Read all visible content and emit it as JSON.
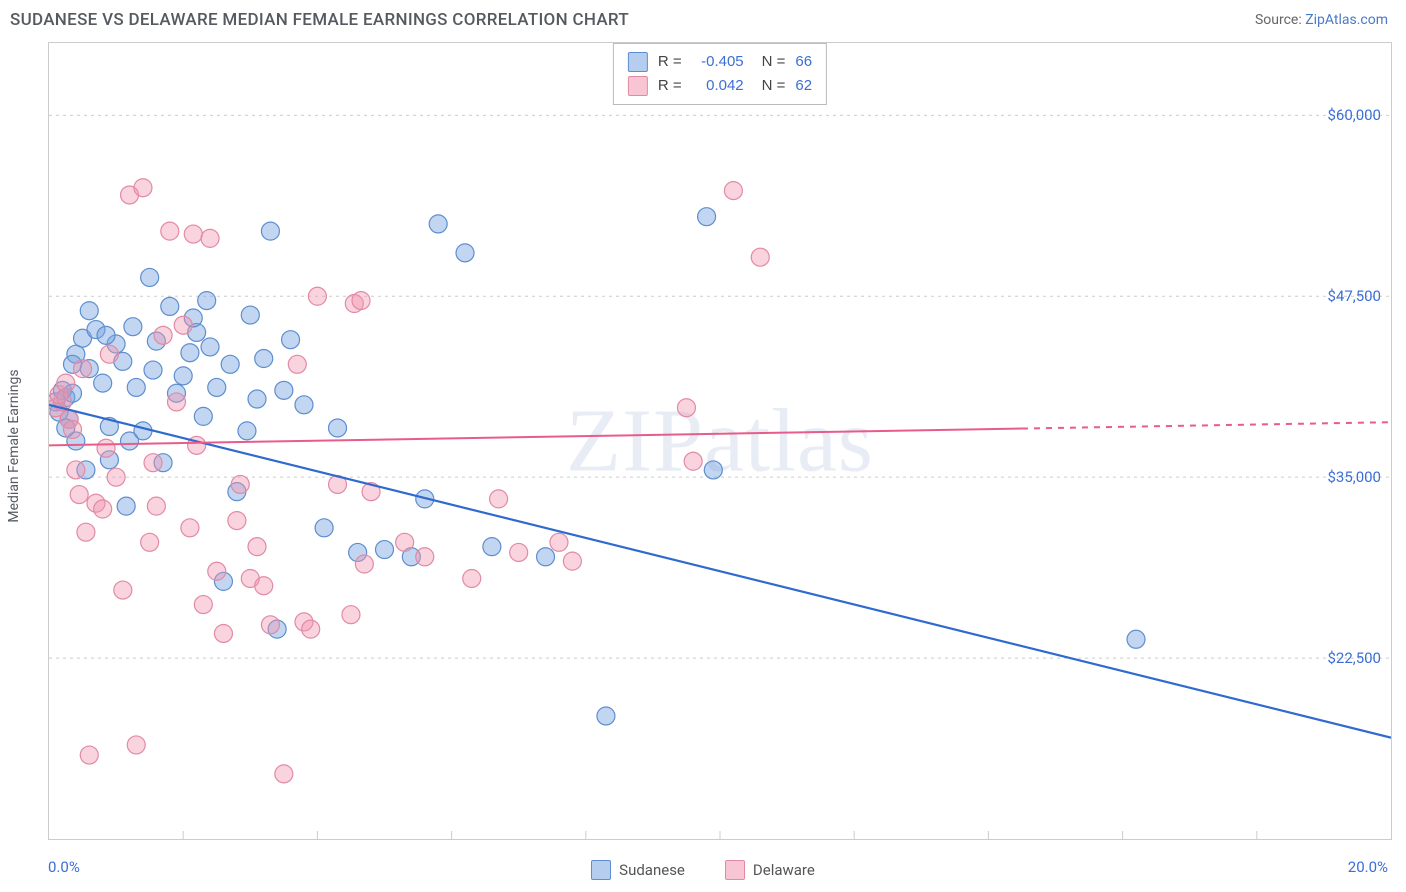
{
  "header": {
    "title": "SUDANESE VS DELAWARE MEDIAN FEMALE EARNINGS CORRELATION CHART",
    "source_prefix": "Source: ",
    "source_link": "ZipAtlas.com"
  },
  "axes": {
    "ylabel": "Median Female Earnings",
    "ylabel_fontsize": 14,
    "xmin": 0.0,
    "xmax": 20.0,
    "xmin_label": "0.0%",
    "xmax_label": "20.0%",
    "ymin": 10000,
    "ymax": 65000,
    "y_ticks": [
      22500,
      35000,
      47500,
      60000
    ],
    "y_tick_labels": [
      "$22,500",
      "$35,000",
      "$47,500",
      "$60,000"
    ],
    "x_tick_positions": [
      2.0,
      4.0,
      6.0,
      8.0,
      10.0,
      12.0,
      14.0,
      16.0,
      18.0
    ]
  },
  "watermark": "ZIPatlas",
  "series": [
    {
      "name": "Sudanese",
      "fill": "rgba(120,165,225,0.45)",
      "stroke": "#5e8ecf",
      "line_stroke": "#2f6ad0",
      "line_width": 2.2,
      "marker_radius": 9,
      "trend": {
        "x1": 0.0,
        "y1": 40000,
        "x2": 20.0,
        "y2": 17000,
        "solid_until_x": 20.0
      },
      "points": [
        [
          0.1,
          40200
        ],
        [
          0.2,
          41000
        ],
        [
          0.3,
          39000
        ],
        [
          0.15,
          39500
        ],
        [
          0.25,
          40500
        ],
        [
          0.35,
          40800
        ],
        [
          0.4,
          43500
        ],
        [
          0.5,
          44600
        ],
        [
          0.6,
          42500
        ],
        [
          0.7,
          45200
        ],
        [
          0.8,
          41500
        ],
        [
          0.9,
          38500
        ],
        [
          1.0,
          44200
        ],
        [
          1.1,
          43000
        ],
        [
          1.2,
          37500
        ],
        [
          1.3,
          41200
        ],
        [
          1.5,
          48800
        ],
        [
          1.6,
          44400
        ],
        [
          1.7,
          36000
        ],
        [
          1.8,
          46800
        ],
        [
          1.9,
          40800
        ],
        [
          2.0,
          42000
        ],
        [
          2.1,
          43600
        ],
        [
          2.2,
          45000
        ],
        [
          2.3,
          39200
        ],
        [
          2.4,
          44000
        ],
        [
          2.5,
          41200
        ],
        [
          2.7,
          42800
        ],
        [
          2.8,
          34000
        ],
        [
          3.0,
          46200
        ],
        [
          3.1,
          40400
        ],
        [
          3.2,
          43200
        ],
        [
          3.3,
          52000
        ],
        [
          3.5,
          41000
        ],
        [
          3.6,
          44500
        ],
        [
          3.8,
          40000
        ],
        [
          3.4,
          24500
        ],
        [
          2.6,
          27800
        ],
        [
          4.1,
          31500
        ],
        [
          4.3,
          38400
        ],
        [
          4.6,
          29800
        ],
        [
          5.0,
          30000
        ],
        [
          5.4,
          29500
        ],
        [
          5.6,
          33500
        ],
        [
          5.8,
          52500
        ],
        [
          6.2,
          50500
        ],
        [
          6.6,
          30200
        ],
        [
          7.4,
          29500
        ],
        [
          8.3,
          18500
        ],
        [
          9.8,
          53000
        ],
        [
          9.9,
          35500
        ],
        [
          16.2,
          23800
        ],
        [
          0.6,
          46500
        ],
        [
          0.4,
          37500
        ],
        [
          0.9,
          36200
        ],
        [
          1.4,
          38200
        ],
        [
          1.15,
          33000
        ],
        [
          0.85,
          44800
        ],
        [
          2.35,
          47200
        ],
        [
          0.55,
          35500
        ],
        [
          1.25,
          45400
        ],
        [
          2.95,
          38200
        ],
        [
          1.55,
          42400
        ],
        [
          0.35,
          42800
        ],
        [
          2.15,
          46000
        ],
        [
          0.25,
          38400
        ]
      ]
    },
    {
      "name": "Delaware",
      "fill": "rgba(240,150,175,0.42)",
      "stroke": "#e28aa5",
      "line_stroke": "#e75c8a",
      "line_width": 2.0,
      "marker_radius": 9,
      "trend": {
        "x1": 0.0,
        "y1": 37200,
        "x2": 20.0,
        "y2": 38800,
        "solid_until_x": 14.5
      },
      "points": [
        [
          0.1,
          39800
        ],
        [
          0.2,
          40200
        ],
        [
          0.3,
          39000
        ],
        [
          0.15,
          40700
        ],
        [
          0.25,
          41500
        ],
        [
          0.35,
          38300
        ],
        [
          0.4,
          35500
        ],
        [
          0.5,
          42500
        ],
        [
          0.6,
          15800
        ],
        [
          0.7,
          33200
        ],
        [
          0.8,
          32800
        ],
        [
          0.9,
          43500
        ],
        [
          1.0,
          35000
        ],
        [
          1.1,
          27200
        ],
        [
          1.2,
          54500
        ],
        [
          1.3,
          16500
        ],
        [
          1.4,
          55000
        ],
        [
          1.5,
          30500
        ],
        [
          1.6,
          33000
        ],
        [
          1.7,
          44800
        ],
        [
          1.8,
          52000
        ],
        [
          1.9,
          40200
        ],
        [
          2.0,
          45500
        ],
        [
          2.1,
          31500
        ],
        [
          2.15,
          51800
        ],
        [
          2.2,
          37200
        ],
        [
          2.3,
          26200
        ],
        [
          2.4,
          51500
        ],
        [
          2.5,
          28500
        ],
        [
          2.6,
          24200
        ],
        [
          2.8,
          32000
        ],
        [
          2.85,
          34500
        ],
        [
          3.0,
          28000
        ],
        [
          3.1,
          30200
        ],
        [
          3.2,
          27500
        ],
        [
          3.3,
          24800
        ],
        [
          3.5,
          14500
        ],
        [
          3.7,
          42800
        ],
        [
          3.8,
          25000
        ],
        [
          3.9,
          24500
        ],
        [
          4.0,
          47500
        ],
        [
          4.3,
          34500
        ],
        [
          4.5,
          25500
        ],
        [
          4.55,
          47000
        ],
        [
          4.7,
          29000
        ],
        [
          4.65,
          47200
        ],
        [
          4.8,
          34000
        ],
        [
          5.3,
          30500
        ],
        [
          5.6,
          29500
        ],
        [
          6.3,
          28000
        ],
        [
          6.7,
          33500
        ],
        [
          7.0,
          29800
        ],
        [
          7.6,
          30500
        ],
        [
          7.8,
          29200
        ],
        [
          9.5,
          39800
        ],
        [
          9.6,
          36100
        ],
        [
          10.2,
          54800
        ],
        [
          10.6,
          50200
        ],
        [
          0.45,
          33800
        ],
        [
          0.85,
          37000
        ],
        [
          1.55,
          36000
        ],
        [
          0.55,
          31200
        ]
      ]
    }
  ],
  "stats_box": {
    "rows": [
      {
        "swatch_fill": "rgba(120,165,225,0.55)",
        "swatch_stroke": "#5e8ecf",
        "r_label": "R =",
        "r_value": "-0.405",
        "n_label": "N =",
        "n_value": "66"
      },
      {
        "swatch_fill": "rgba(240,150,175,0.55)",
        "swatch_stroke": "#e28aa5",
        "r_label": "R =",
        "r_value": "0.042",
        "n_label": "N =",
        "n_value": "62"
      }
    ]
  },
  "bottom_legend": {
    "items": [
      {
        "label": "Sudanese",
        "fill": "rgba(120,165,225,0.55)",
        "stroke": "#5e8ecf"
      },
      {
        "label": "Delaware",
        "fill": "rgba(240,150,175,0.55)",
        "stroke": "#e28aa5"
      }
    ]
  },
  "style": {
    "grid_color": "#cccccc",
    "grid_dash": "3,4",
    "plot_border": "#cccccc",
    "background": "#ffffff",
    "accent_text": "#3b6fd6"
  }
}
